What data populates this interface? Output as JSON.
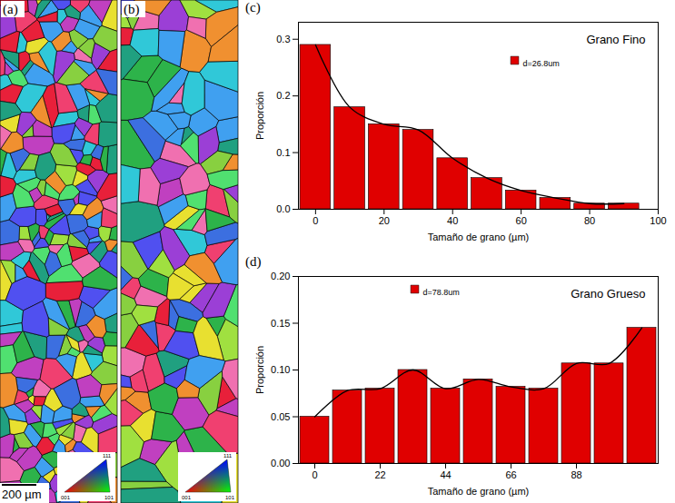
{
  "images": [
    {
      "label": "(a)",
      "scale_bar": "200 µm",
      "ipf_corners": [
        "001",
        "101",
        "111"
      ]
    },
    {
      "label": "(b)",
      "ipf_corners": [
        "001",
        "101",
        "111"
      ]
    }
  ],
  "chart_data": [
    {
      "type": "histogram",
      "panel_label": "(c)",
      "title": "Grano Fino",
      "xlabel": "Tamaño de grano (µm)",
      "ylabel": "Proporción",
      "bins": [
        -5,
        5,
        15,
        25,
        35,
        45,
        55,
        65,
        75,
        85,
        95
      ],
      "series": [
        {
          "name": "d=26.8um",
          "type": "bar",
          "color": "#e00000",
          "values": [
            0.29,
            0.18,
            0.15,
            0.14,
            0.09,
            0.055,
            0.033,
            0.02,
            0.01,
            0.01
          ]
        },
        {
          "type": "line",
          "color": "#000000",
          "values": [
            0.29,
            0.18,
            0.15,
            0.14,
            0.09,
            0.055,
            0.033,
            0.02,
            0.01,
            0.01
          ]
        }
      ],
      "xlim": [
        -5,
        100
      ],
      "xticks": [
        0,
        20,
        40,
        60,
        80,
        100
      ],
      "ylim": [
        0,
        0.33
      ],
      "yticks": [
        {
          "value": 0,
          "label": "0.0"
        },
        {
          "value": 0.1,
          "label": "0.1"
        },
        {
          "value": 0.2,
          "label": "0.2"
        },
        {
          "value": 0.3,
          "label": "0.3"
        }
      ],
      "legend": "top"
    },
    {
      "type": "histogram",
      "panel_label": "(d)",
      "title": "Grano Grueso",
      "xlabel": "Tamaño de grano (µm)",
      "ylabel": "Proporción",
      "bins": [
        -5.5,
        5.5,
        16.5,
        27.5,
        38.5,
        49.5,
        60.5,
        71.5,
        82.5,
        93.5,
        104.5,
        115.5
      ],
      "series": [
        {
          "name": "d=78.8um",
          "type": "bar",
          "color": "#e00000",
          "values": [
            0.05,
            0.078,
            0.08,
            0.1,
            0.08,
            0.09,
            0.082,
            0.08,
            0.107,
            0.107,
            0.145
          ]
        },
        {
          "type": "line",
          "color": "#000000",
          "values": [
            0.05,
            0.078,
            0.08,
            0.1,
            0.08,
            0.09,
            0.082,
            0.08,
            0.107,
            0.107,
            0.145
          ]
        }
      ],
      "xlim": [
        -5.5,
        115.5
      ],
      "xticks": [
        0,
        22,
        44,
        66,
        88
      ],
      "ylim": [
        0,
        0.2
      ],
      "yticks": [
        {
          "value": 0,
          "label": "0.00"
        },
        {
          "value": 0.05,
          "label": "0.05"
        },
        {
          "value": 0.1,
          "label": "0.10"
        },
        {
          "value": 0.15,
          "label": "0.15"
        },
        {
          "value": 0.2,
          "label": "0.20"
        }
      ],
      "legend": "top"
    }
  ]
}
